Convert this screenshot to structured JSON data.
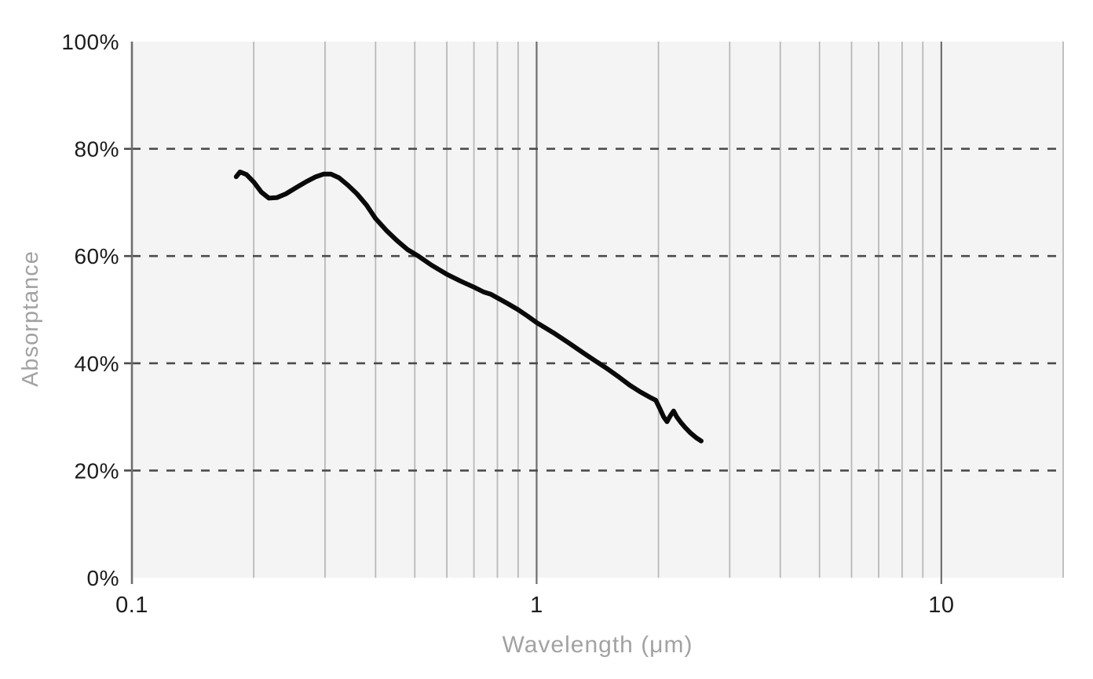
{
  "chart_data": {
    "type": "line",
    "title": "",
    "xlabel": "Wavelength (μm)",
    "ylabel": "Absorptance",
    "x_scale": "log",
    "y_scale": "linear",
    "xlim": [
      0.1,
      20
    ],
    "ylim": [
      0,
      100
    ],
    "grid": true,
    "legend": false,
    "x_ticks": [
      {
        "value": 0.1,
        "label": "0.1"
      },
      {
        "value": 1,
        "label": "1"
      },
      {
        "value": 10,
        "label": "10"
      }
    ],
    "y_ticks": [
      {
        "value": 0,
        "label": "0%"
      },
      {
        "value": 20,
        "label": "20%"
      },
      {
        "value": 40,
        "label": "40%"
      },
      {
        "value": 60,
        "label": "60%"
      },
      {
        "value": 80,
        "label": "80%"
      },
      {
        "value": 100,
        "label": "100%"
      }
    ],
    "x_gridlines_minor": [
      0.2,
      0.3,
      0.4,
      0.5,
      0.6,
      0.7,
      0.8,
      0.9,
      2,
      3,
      4,
      5,
      6,
      7,
      8,
      9,
      20
    ],
    "x_gridlines_major": [
      1,
      10
    ],
    "y_gridlines_dashed": [
      20,
      40,
      60,
      80
    ],
    "series": [
      {
        "name": "Absorptance",
        "x": [
          0.181,
          0.185,
          0.192,
          0.2,
          0.209,
          0.218,
          0.228,
          0.24,
          0.255,
          0.27,
          0.285,
          0.298,
          0.31,
          0.325,
          0.342,
          0.36,
          0.38,
          0.4,
          0.425,
          0.45,
          0.48,
          0.51,
          0.55,
          0.6,
          0.65,
          0.7,
          0.74,
          0.77,
          0.8,
          0.85,
          0.9,
          0.95,
          1.0,
          1.1,
          1.2,
          1.3,
          1.4,
          1.5,
          1.6,
          1.7,
          1.8,
          1.9,
          1.97,
          2.02,
          2.06,
          2.1,
          2.14,
          2.18,
          2.22,
          2.27,
          2.33,
          2.4,
          2.48,
          2.55
        ],
        "y": [
          74.8,
          75.7,
          75.2,
          73.8,
          71.9,
          70.8,
          70.9,
          71.6,
          72.8,
          73.9,
          74.8,
          75.3,
          75.3,
          74.6,
          73.2,
          71.6,
          69.5,
          67.0,
          64.8,
          63.0,
          61.2,
          60.0,
          58.3,
          56.6,
          55.3,
          54.2,
          53.3,
          52.9,
          52.2,
          51.1,
          50.0,
          48.8,
          47.6,
          45.7,
          43.8,
          42.0,
          40.4,
          38.9,
          37.4,
          35.9,
          34.7,
          33.7,
          33.1,
          31.4,
          30.0,
          29.1,
          30.2,
          31.1,
          30.0,
          29.0,
          28.0,
          27.0,
          26.1,
          25.5
        ]
      }
    ],
    "colors": {
      "curve": "#0a0a0a",
      "plot_background": "#f4f4f5",
      "grid_minor": "#b9b9bd",
      "grid_major": "#6e6e72",
      "axis_line": "#6e6e72",
      "dashed_line": "#4c4c4c",
      "tick_label": "#1c1c1c",
      "axis_title": "#a2a2a2"
    },
    "style": {
      "curve_width": 6,
      "dash_pattern": "11 11",
      "tick_font_size": 28,
      "title_font_size": 30
    }
  }
}
